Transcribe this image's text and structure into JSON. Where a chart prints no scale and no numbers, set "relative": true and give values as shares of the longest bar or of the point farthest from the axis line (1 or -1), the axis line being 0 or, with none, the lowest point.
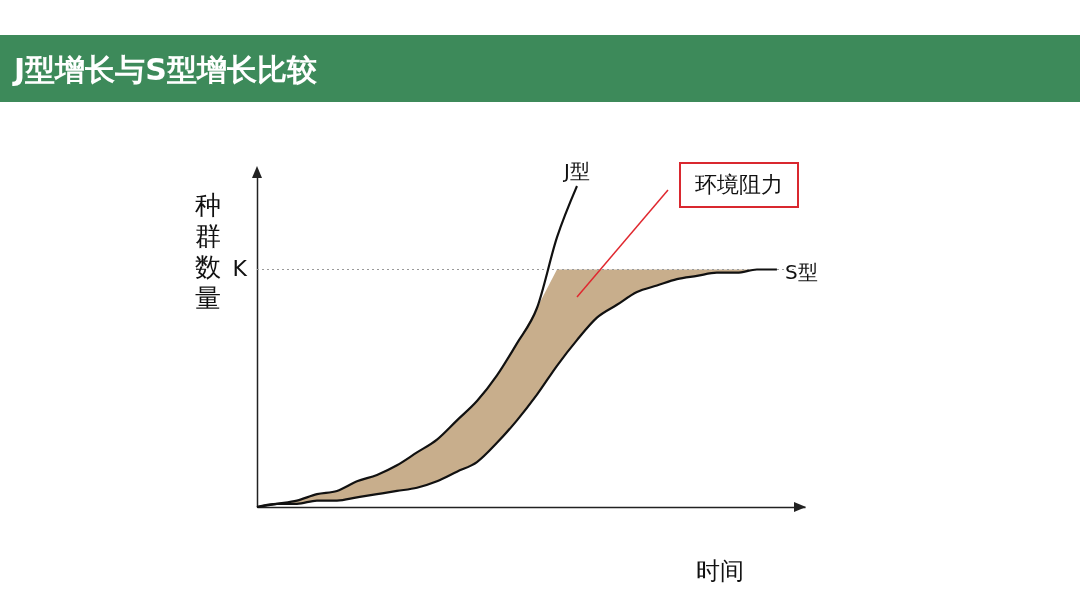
{
  "chart_data": {
    "type": "line",
    "title": "J型增长与S型增长比较",
    "xlabel": "时间",
    "ylabel": "种群数量",
    "relative": true,
    "grid": false,
    "marker": "none",
    "line_style": "solid",
    "categories": [
      null,
      null,
      null,
      null,
      null,
      null,
      null,
      null,
      null,
      null,
      null,
      null,
      null,
      null,
      null,
      null,
      null,
      null,
      null,
      null,
      null,
      null,
      null,
      null,
      null,
      null,
      null
    ],
    "series": [
      {
        "name": "J型",
        "color": "#111111",
        "values": [
          0,
          0.01,
          0.02,
          0.04,
          0.05,
          0.08,
          0.1,
          0.13,
          0.17,
          0.21,
          0.27,
          0.33,
          0.41,
          0.51,
          0.62,
          0.84,
          1.0,
          null,
          null,
          null,
          null,
          null,
          null,
          null,
          null,
          null,
          null
        ]
      },
      {
        "name": "S型",
        "color": "#111111",
        "values": [
          0,
          0.01,
          0.01,
          0.02,
          0.02,
          0.03,
          0.04,
          0.05,
          0.06,
          0.08,
          0.11,
          0.14,
          0.2,
          0.27,
          0.35,
          0.44,
          0.52,
          0.59,
          0.63,
          0.67,
          0.69,
          0.71,
          0.72,
          0.73,
          0.73,
          0.74,
          0.74
        ],
        "lower": [
          0,
          0.01,
          0.01,
          0.02,
          0.02,
          0.03,
          0.04,
          0.05,
          0.06,
          0.08,
          0.11,
          0.14,
          0.2,
          0.27,
          0.35,
          0.44,
          0.52,
          0.59,
          0.63,
          0.67,
          0.69,
          0.71,
          0.72,
          0.73,
          0.73,
          0.74,
          0.74
        ],
        "upper": [
          0,
          0.01,
          0.02,
          0.04,
          0.05,
          0.08,
          0.1,
          0.13,
          0.17,
          0.21,
          0.27,
          0.33,
          0.41,
          0.51,
          0.62,
          0.74,
          0.74,
          0.74,
          0.74,
          0.74,
          0.74,
          0.74,
          0.74,
          0.74,
          0.74,
          0.74,
          0.74
        ]
      }
    ],
    "ref_lines": [
      {
        "axis": "y",
        "value": 0.74,
        "label": "K",
        "color": "#999999",
        "line_style": "dotted"
      }
    ],
    "annotations": [
      "环境阻力"
    ]
  }
}
